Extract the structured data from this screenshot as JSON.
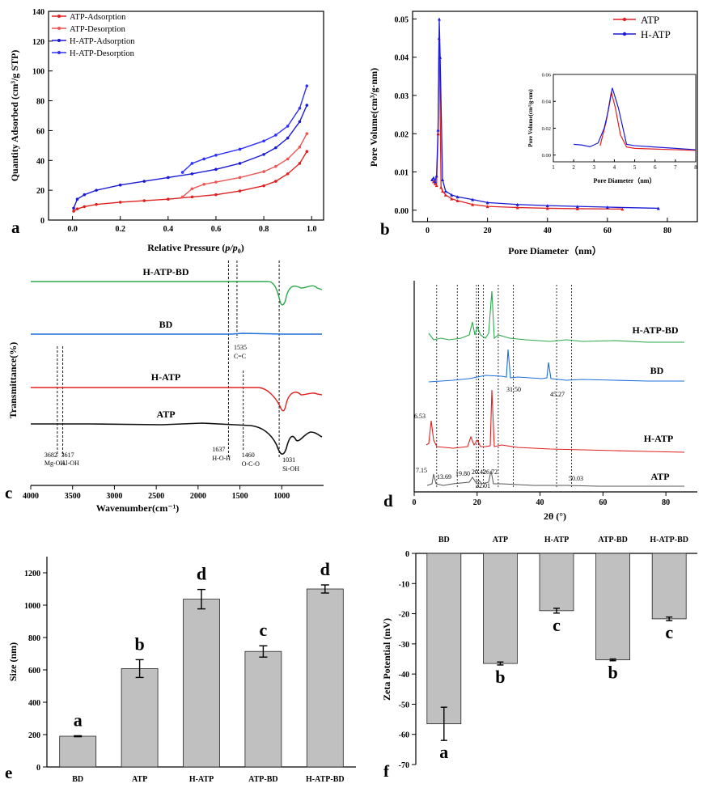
{
  "chart_data": [
    {
      "panel": "a",
      "type": "line",
      "xlabel": "Relative Pressure",
      "xlabel_math": "p/p",
      "xlabel_sub": "0",
      "ylabel": "Quantity Adsorbed (cm³/g STP)",
      "xlim": [
        -0.1,
        1.05
      ],
      "ylim": [
        0,
        140
      ],
      "xticks": [
        0.0,
        0.2,
        0.4,
        0.6,
        0.8,
        1.0
      ],
      "yticks": [
        0,
        20,
        40,
        60,
        80,
        100,
        120,
        140
      ],
      "legend_position": "top-left",
      "series": [
        {
          "name": "ATP-Adsorption",
          "color": "#e02020",
          "x": [
            0.005,
            0.02,
            0.05,
            0.1,
            0.2,
            0.3,
            0.4,
            0.5,
            0.6,
            0.7,
            0.8,
            0.85,
            0.9,
            0.95,
            0.98
          ],
          "y": [
            6,
            7.5,
            9,
            10.5,
            12,
            13,
            14,
            15.5,
            17,
            19.5,
            23,
            26,
            31,
            38,
            46
          ]
        },
        {
          "name": "ATP-Desorption",
          "color": "#ee5555",
          "x": [
            0.46,
            0.5,
            0.55,
            0.6,
            0.7,
            0.8,
            0.85,
            0.9,
            0.95,
            0.98
          ],
          "y": [
            15.5,
            21,
            24,
            25.5,
            28.5,
            32.5,
            36,
            41,
            49,
            58
          ]
        },
        {
          "name": "H-ATP-Adsorption",
          "color": "#1a1ad6",
          "x": [
            0.005,
            0.02,
            0.05,
            0.1,
            0.2,
            0.3,
            0.4,
            0.5,
            0.6,
            0.7,
            0.8,
            0.85,
            0.9,
            0.95,
            0.98
          ],
          "y": [
            8,
            14,
            17,
            20,
            23.5,
            26,
            28.5,
            31,
            34,
            38,
            44,
            48.5,
            55,
            66,
            77
          ]
        },
        {
          "name": "H-ATP-Desorption",
          "color": "#3030ff",
          "x": [
            0.46,
            0.5,
            0.55,
            0.6,
            0.7,
            0.8,
            0.85,
            0.9,
            0.95,
            0.98
          ],
          "y": [
            32,
            38,
            41,
            43.5,
            47.5,
            53,
            57,
            63,
            75,
            90
          ]
        }
      ]
    },
    {
      "panel": "b",
      "type": "line",
      "xlabel": "Pore Diameter（nm）",
      "ylabel": "Pore Volume(cm³/g·nm)",
      "xlim": [
        -5,
        90
      ],
      "ylim": [
        -0.003,
        0.052
      ],
      "xticks": [
        0,
        20,
        40,
        60,
        80
      ],
      "yticks": [
        0.0,
        0.01,
        0.02,
        0.03,
        0.04,
        0.05
      ],
      "ytick_labels": [
        "0.00",
        "0.01",
        "0.02",
        "0.03",
        "0.04",
        "0.05"
      ],
      "legend_position": "top-right",
      "series": [
        {
          "name": "ATP",
          "color": "#e02020",
          "x": [
            2,
            2.5,
            3,
            3.5,
            3.8,
            4,
            4.5,
            5,
            6,
            8,
            10,
            15,
            20,
            30,
            40,
            50,
            65
          ],
          "y": [
            0.0075,
            0.007,
            0.0065,
            0.02,
            0.045,
            0.04,
            0.006,
            0.005,
            0.004,
            0.003,
            0.0025,
            0.0015,
            0.001,
            0.0007,
            0.0005,
            0.0004,
            0.0003
          ]
        },
        {
          "name": "H-ATP",
          "color": "#1a1ad6",
          "x": [
            1.5,
            2,
            2.5,
            3,
            3.5,
            3.9,
            4.2,
            5,
            6,
            8,
            10,
            15,
            20,
            30,
            40,
            50,
            60,
            77
          ],
          "y": [
            0.008,
            0.0085,
            0.0075,
            0.009,
            0.021,
            0.05,
            0.04,
            0.008,
            0.005,
            0.004,
            0.0035,
            0.0028,
            0.002,
            0.0015,
            0.0012,
            0.001,
            0.0008,
            0.0005
          ]
        }
      ],
      "inset": {
        "xlabel": "Pore Diameter（nm）",
        "ylabel": "Pore Volume(cm³/g·nm)",
        "xlim": [
          1,
          8
        ],
        "ylim": [
          -0.005,
          0.06
        ],
        "xticks": [
          1,
          2,
          3,
          4,
          5,
          6,
          7,
          8
        ],
        "yticks": [
          0.0,
          0.02,
          0.04,
          0.06
        ],
        "ytick_labels": [
          "0.00",
          "0.02",
          "0.04",
          "0.06"
        ],
        "series": [
          {
            "name": "ATP",
            "color": "#e02020",
            "x": [
              3.3,
              3.6,
              3.85,
              4.05,
              4.3,
              4.6,
              5,
              6,
              7,
              8
            ],
            "y": [
              0.007,
              0.025,
              0.047,
              0.035,
              0.015,
              0.006,
              0.005,
              0.0045,
              0.004,
              0.0035
            ]
          },
          {
            "name": "H-ATP",
            "color": "#1a1ad6",
            "x": [
              2,
              2.4,
              2.8,
              3.2,
              3.5,
              3.7,
              3.9,
              4.2,
              4.6,
              5,
              6,
              7,
              8
            ],
            "y": [
              0.008,
              0.0075,
              0.0062,
              0.009,
              0.02,
              0.033,
              0.05,
              0.035,
              0.008,
              0.007,
              0.006,
              0.005,
              0.004
            ]
          }
        ]
      }
    },
    {
      "panel": "c",
      "type": "line",
      "xlabel": "Wavenumber(cm⁻¹)",
      "ylabel": "Transmittance(%)",
      "xlim": [
        4000,
        500
      ],
      "xticks": [
        4000,
        3500,
        3000,
        2500,
        2000,
        1500,
        1000
      ],
      "spectra": [
        {
          "name": "H-ATP-BD",
          "color": "#2aa84a"
        },
        {
          "name": "BD",
          "color": "#1e6fd9"
        },
        {
          "name": "H-ATP",
          "color": "#e02020"
        },
        {
          "name": "ATP",
          "color": "#111111"
        }
      ],
      "reference_lines": [
        3682,
        3617,
        1637,
        1535,
        1460,
        1031
      ],
      "annotations": [
        {
          "x": 3682,
          "value": "3682",
          "label": "Mg-OH"
        },
        {
          "x": 3617,
          "value": "3617",
          "label": "Al-OH"
        },
        {
          "x": 1637,
          "value": "1637",
          "label": "H-O-H"
        },
        {
          "x": 1535,
          "value": "1535",
          "label": "C=C"
        },
        {
          "x": 1460,
          "value": "1460",
          "label": "O-C-O"
        },
        {
          "x": 1031,
          "value": "1031",
          "label": "Si-OH"
        }
      ]
    },
    {
      "panel": "d",
      "type": "line",
      "xlabel": "2θ (°)",
      "xlim": [
        0,
        90
      ],
      "xticks": [
        0,
        20,
        40,
        60,
        80
      ],
      "spectra": [
        {
          "name": "H-ATP-BD",
          "color": "#2aa84a"
        },
        {
          "name": "BD",
          "color": "#1e6fd9"
        },
        {
          "name": "H-ATP",
          "color": "#e02020"
        },
        {
          "name": "ATP",
          "color": "#555555"
        }
      ],
      "reference_lines": [
        7.15,
        13.69,
        19.8,
        20.42,
        22.01,
        26.72,
        31.5,
        45.27,
        50.03
      ],
      "peak_labels": [
        "6.53",
        "7.15",
        "13.69",
        "19.80",
        "20.42",
        "22.01",
        "26.72",
        "31.50",
        "45.27",
        "50.03"
      ]
    },
    {
      "panel": "e",
      "type": "bar",
      "ylabel": "Size (nm)",
      "categories": [
        "BD",
        "ATP",
        "H-ATP",
        "ATP-BD",
        "H-ATP-BD"
      ],
      "values": [
        190,
        608,
        1037,
        714,
        1100
      ],
      "errors": [
        3,
        55,
        60,
        35,
        25
      ],
      "letters": [
        "a",
        "b",
        "d",
        "c",
        "d"
      ],
      "ylim": [
        0,
        1300
      ],
      "yticks": [
        0,
        200,
        400,
        600,
        800,
        1000,
        1200
      ],
      "bar_color": "#c0c0c0"
    },
    {
      "panel": "f",
      "type": "bar",
      "ylabel": "Zeta Potential (mV)",
      "categories": [
        "BD",
        "ATP",
        "H-ATP",
        "ATP-BD",
        "H-ATP-BD"
      ],
      "values": [
        -56.5,
        -36.5,
        -19.0,
        -35.3,
        -21.7
      ],
      "errors": [
        5.5,
        0.5,
        0.8,
        0.3,
        0.6
      ],
      "letters": [
        "a",
        "b",
        "c",
        "b",
        "c"
      ],
      "ylim": [
        -70,
        0
      ],
      "yticks": [
        0,
        -10,
        -20,
        -30,
        -40,
        -50,
        -60,
        -70
      ],
      "bar_color": "#c0c0c0"
    }
  ],
  "panel_labels": {
    "a": "a",
    "b": "b",
    "c": "c",
    "d": "d",
    "e": "e",
    "f": "f"
  }
}
